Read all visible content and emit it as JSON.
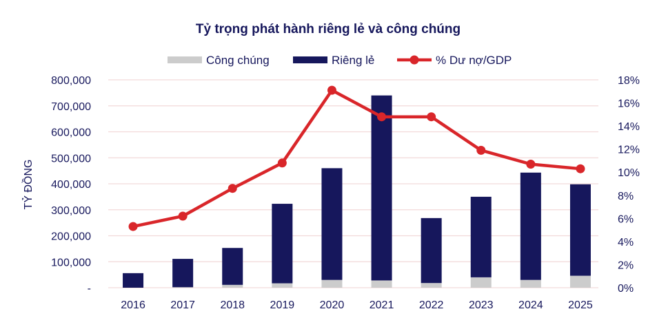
{
  "chart_data": {
    "type": "bar+line",
    "title": "Tỷ trọng phát hành riêng lẻ và công chúng",
    "ylabel": "TỶ ĐỒNG",
    "ylabel_right": "",
    "xlabel": "",
    "categories": [
      "2016",
      "2017",
      "2018",
      "2019",
      "2020",
      "2021",
      "2022",
      "2023",
      "2024",
      "2025"
    ],
    "ylim": [
      0,
      800000
    ],
    "ylim_right": [
      0,
      18
    ],
    "yticks": [
      "-",
      "100,000",
      "200,000",
      "300,000",
      "400,000",
      "500,000",
      "600,000",
      "700,000",
      "800,000"
    ],
    "yticks_right": [
      "0%",
      "2%",
      "4%",
      "6%",
      "8%",
      "10%",
      "12%",
      "14%",
      "16%",
      "18%"
    ],
    "grid": true,
    "legend_position": "top",
    "series": [
      {
        "name": "Công chúng",
        "type": "stacked-bar",
        "axis": "left",
        "color": "#cccccc",
        "values": [
          0,
          2000,
          11000,
          17000,
          30000,
          28000,
          18000,
          40000,
          30000,
          46000
        ]
      },
      {
        "name": "Riêng lẻ",
        "type": "stacked-bar",
        "axis": "left",
        "color": "#16175c",
        "values": [
          56000,
          109000,
          142000,
          306000,
          430000,
          712000,
          250000,
          310000,
          413000,
          352000
        ]
      },
      {
        "name": "% Dư nợ/GDP",
        "type": "line",
        "axis": "right",
        "color": "#d9262a",
        "values": [
          5.3,
          6.2,
          8.6,
          10.8,
          17.1,
          14.8,
          14.8,
          11.9,
          10.7,
          10.3
        ]
      }
    ]
  }
}
